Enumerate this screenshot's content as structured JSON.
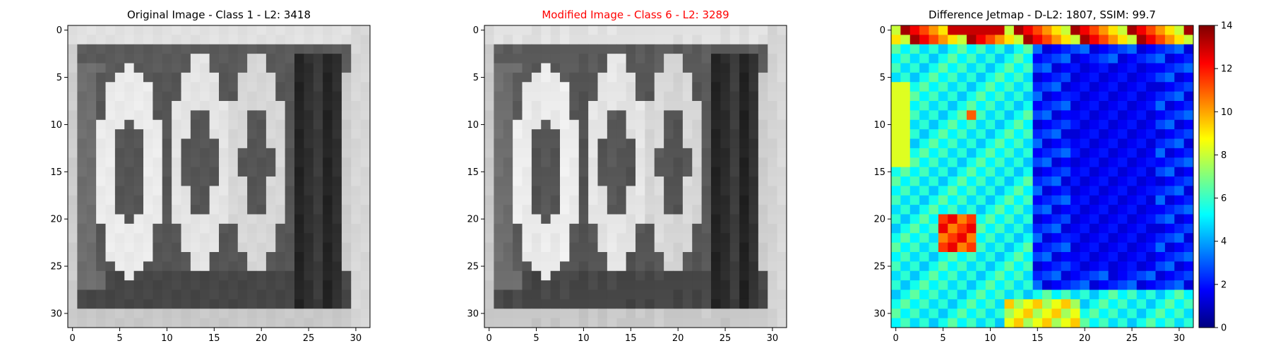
{
  "figure": {
    "panels": [
      {
        "title": "Original Image - Class 1 - L2: 3418",
        "title_color": "#000000"
      },
      {
        "title": "Modified Image - Class 6 - L2: 3289",
        "title_color": "#ff0000"
      },
      {
        "title": "Difference Jetmap - D-L2: 1807, SSIM: 99.7",
        "title_color": "#000000"
      }
    ],
    "axis_ticks": [
      "0",
      "5",
      "10",
      "15",
      "20",
      "25",
      "30"
    ],
    "colorbar_ticks": [
      "0",
      "2",
      "4",
      "6",
      "8",
      "10",
      "12",
      "14"
    ]
  },
  "chart_data": [
    {
      "type": "heatmap",
      "title": "Original Image - Class 1 - L2: 3418",
      "colormap": "gray",
      "grid_size": [
        32,
        32
      ],
      "xlim": [
        -0.5,
        31.5
      ],
      "ylim": [
        31.5,
        -0.5
      ],
      "xticks": [
        0,
        5,
        10,
        15,
        20,
        25,
        30
      ],
      "yticks": [
        0,
        5,
        10,
        15,
        20,
        25,
        30
      ],
      "content": "grayscale digits '1 0 0' on light background with dark frame"
    },
    {
      "type": "heatmap",
      "title": "Modified Image - Class 6 - L2: 3289",
      "colormap": "gray",
      "grid_size": [
        32,
        32
      ],
      "xlim": [
        -0.5,
        31.5
      ],
      "ylim": [
        31.5,
        -0.5
      ],
      "xticks": [
        0,
        5,
        10,
        15,
        20,
        25,
        30
      ],
      "yticks": [
        0,
        5,
        10,
        15,
        20,
        25,
        30
      ]
    },
    {
      "type": "heatmap",
      "title": "Difference Jetmap - D-L2: 1807, SSIM: 99.7",
      "colormap": "jet",
      "grid_size": [
        32,
        32
      ],
      "value_range": [
        0,
        14
      ],
      "xlim": [
        -0.5,
        31.5
      ],
      "ylim": [
        31.5,
        -0.5
      ],
      "xticks": [
        0,
        5,
        10,
        15,
        20,
        25,
        30
      ],
      "yticks": [
        0,
        5,
        10,
        15,
        20,
        25,
        30
      ],
      "colorbar_ticks": [
        0,
        2,
        4,
        6,
        8,
        10,
        12,
        14
      ]
    }
  ]
}
